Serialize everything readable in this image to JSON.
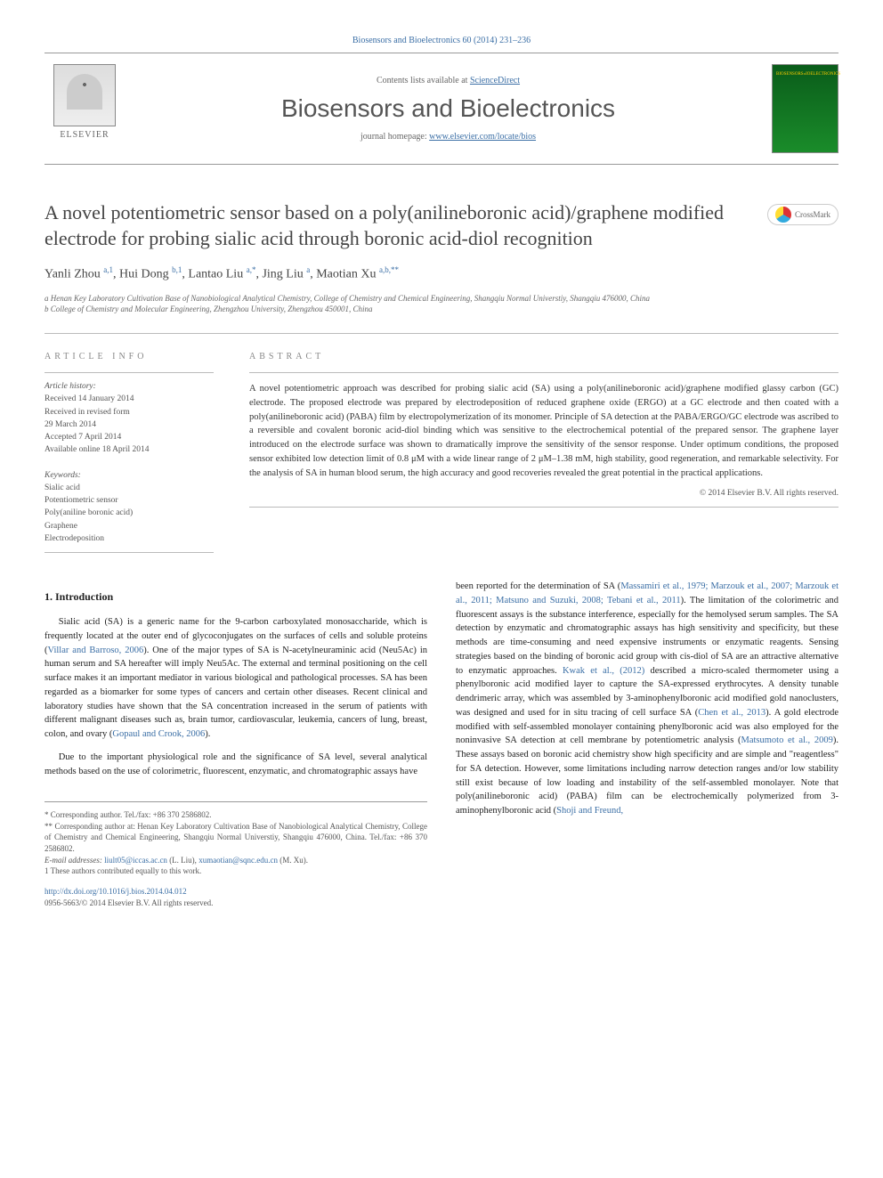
{
  "top_link": "Biosensors and Bioelectronics 60 (2014) 231–236",
  "header": {
    "contents_prefix": "Contents lists available at ",
    "contents_link": "ScienceDirect",
    "journal_name": "Biosensors and Bioelectronics",
    "homepage_prefix": "journal homepage: ",
    "homepage_url": "www.elsevier.com/locate/bios",
    "publisher": "ELSEVIER"
  },
  "crossmark": "CrossMark",
  "title": "A novel potentiometric sensor based on a poly(anilineboronic acid)/graphene modified electrode for probing sialic acid through boronic acid-diol recognition",
  "authors_html": "Yanli Zhou <sup>a,1</sup>, Hui Dong <sup>b,1</sup>, Lantao Liu <sup>a,*</sup>, Jing Liu <sup>a</sup>, Maotian Xu <sup>a,b,**</sup>",
  "affiliations": [
    "a Henan Key Laboratory Cultivation Base of Nanobiological Analytical Chemistry, College of Chemistry and Chemical Engineering, Shangqiu Normal Universtiy, Shangqiu 476000, China",
    "b College of Chemistry and Molecular Engineering, Zhengzhou University, Zhengzhou 450001, China"
  ],
  "info_headings": {
    "article_info": "article info",
    "abstract": "abstract"
  },
  "history": {
    "label": "Article history:",
    "lines": [
      "Received 14 January 2014",
      "Received in revised form",
      "29 March 2014",
      "Accepted 7 April 2014",
      "Available online 18 April 2014"
    ]
  },
  "keywords": {
    "label": "Keywords:",
    "items": [
      "Sialic acid",
      "Potentiometric sensor",
      "Poly(aniline boronic acid)",
      "Graphene",
      "Electrodeposition"
    ]
  },
  "abstract": "A novel potentiometric approach was described for probing sialic acid (SA) using a poly(anilineboronic acid)/graphene modified glassy carbon (GC) electrode. The proposed electrode was prepared by electrodeposition of reduced graphene oxide (ERGO) at a GC electrode and then coated with a poly(anilineboronic acid) (PABA) film by electropolymerization of its monomer. Principle of SA detection at the PABA/ERGO/GC electrode was ascribed to a reversible and covalent boronic acid-diol binding which was sensitive to the electrochemical potential of the prepared sensor. The graphene layer introduced on the electrode surface was shown to dramatically improve the sensitivity of the sensor response. Under optimum conditions, the proposed sensor exhibited low detection limit of 0.8 μM with a wide linear range of 2 μM–1.38 mM, high stability, good regeneration, and remarkable selectivity. For the analysis of SA in human blood serum, the high accuracy and good recoveries revealed the great potential in the practical applications.",
  "copyright": "© 2014 Elsevier B.V. All rights reserved.",
  "section1_heading": "1. Introduction",
  "col1": {
    "p1_pre": "Sialic acid (SA) is a generic name for the 9-carbon carboxylated monosaccharide, which is frequently located at the outer end of glycoconjugates on the surfaces of cells and soluble proteins (",
    "p1_link": "Villar and Barroso, 2006",
    "p1_post": "). One of the major types of SA is N-acetylneuraminic acid (Neu5Ac) in human serum and SA hereafter will imply Neu5Ac. The external and terminal positioning on the cell surface makes it an important mediator in various biological and pathological processes. SA has been regarded as a biomarker for some types of cancers and certain other diseases. Recent clinical and laboratory studies have shown that the SA concentration increased in the serum of patients with different malignant diseases such as, brain tumor, cardiovascular, leukemia, cancers of lung, breast, colon, and ovary (",
    "p1_link2": "Gopaul and Crook, 2006",
    "p1_post2": ").",
    "p2": "Due to the important physiological role and the significance of SA level, several analytical methods based on the use of colorimetric, fluorescent, enzymatic, and chromatographic assays have"
  },
  "col2": {
    "p1_pre": "been reported for the determination of SA (",
    "p1_link": "Massamiri et al., 1979; Marzouk et al., 2007; Marzouk et al., 2011; Matsuno and Suzuki, 2008; Tebani et al., 2011",
    "p1_mid": "). The limitation of the colorimetric and fluorescent assays is the substance interference, especially for the hemolysed serum samples. The SA detection by enzymatic and chromatographic assays has high sensitivity and specificity, but these methods are time-consuming and need expensive instruments or enzymatic reagents. Sensing strategies based on the binding of boronic acid group with cis-diol of SA are an attractive alternative to enzymatic approaches. ",
    "p1_link2": "Kwak et al., (2012)",
    "p1_mid2": " described a micro-scaled thermometer using a phenylboronic acid modified layer to capture the SA-expressed erythrocytes. A density tunable dendrimeric array, which was assembled by 3-aminophenylboronic acid modified gold nanoclusters, was designed and used for in situ tracing of cell surface SA (",
    "p1_link3": "Chen et al., 2013",
    "p1_mid3": "). A gold electrode modified with self-assembled monolayer containing phenylboronic acid was also employed for the noninvasive SA detection at cell membrane by potentiometric analysis (",
    "p1_link4": "Matsumoto et al., 2009",
    "p1_mid4": "). These assays based on boronic acid chemistry show high specificity and are simple and \"reagentless\" for SA detection. However, some limitations including narrow detection ranges and/or low stability still exist because of low loading and instability of the self-assembled monolayer. Note that poly(anilineboronic acid) (PABA) film can be electrochemically polymerized from 3-aminophenylboronic acid (",
    "p1_link5": "Shoji and Freund,"
  },
  "footer": {
    "corr1": "* Corresponding author. Tel./fax: +86 370 2586802.",
    "corr2": "** Corresponding author at: Henan Key Laboratory Cultivation Base of Nanobiological Analytical Chemistry, College of Chemistry and Chemical Engineering, Shangqiu Normal Universtiy, Shangqiu 476000, China. Tel./fax: +86 370 2586802.",
    "email_label": "E-mail addresses: ",
    "email1": "liult05@iccas.ac.cn",
    "email1_name": " (L. Liu), ",
    "email2": "xumaotian@sqnc.edu.cn",
    "email2_name": " (M. Xu).",
    "note1": "1 These authors contributed equally to this work.",
    "doi": "http://dx.doi.org/10.1016/j.bios.2014.04.012",
    "issn": "0956-5663/© 2014 Elsevier B.V. All rights reserved."
  }
}
